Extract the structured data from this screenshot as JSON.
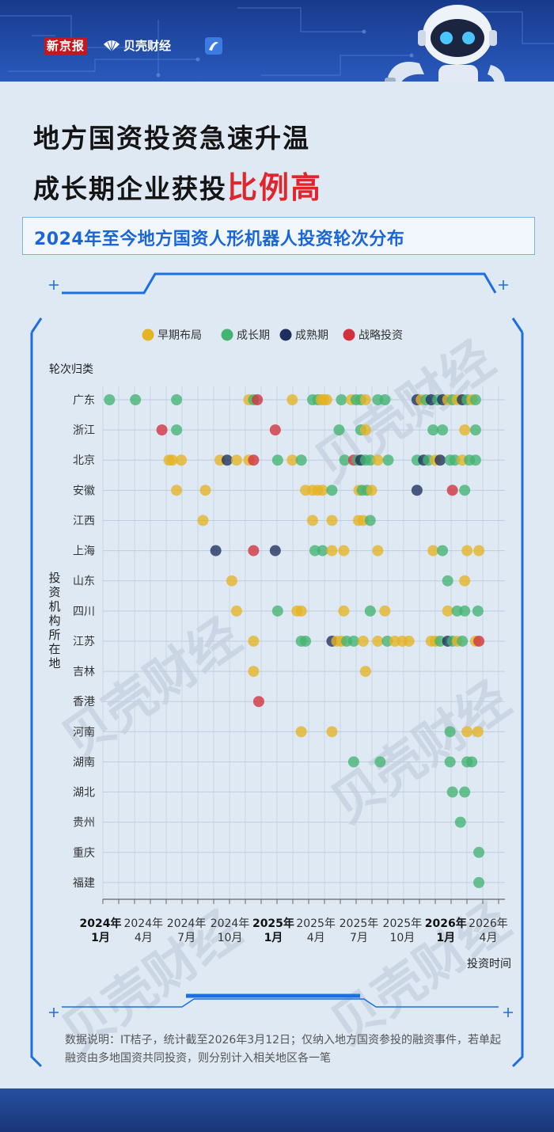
{
  "header": {
    "logo_xinjingbao": "新京报",
    "logo_beike": "贝壳财经"
  },
  "title": {
    "line1": "地方国资投资急速升温",
    "line2_plain": "成长期企业获投",
    "line2_highlight": "比例高"
  },
  "subtitle": "2024年至今地方国资人形机器人投资轮次分布",
  "watermark": "贝壳财经",
  "footnote": "数据说明：IT桔子，统计截至2026年3月12日；仅纳入地方国资参投的融资事件，若单起融资由多地国资共同投资，则分别计入相关地区各一笔",
  "colors": {
    "early": "#e6b422",
    "growth": "#43b371",
    "mature": "#1d2f5c",
    "strategic": "#d1313c",
    "title_red": "#e0262d",
    "subtitle_blue": "#1a66d9"
  },
  "chart_data": {
    "type": "scatter",
    "x_type": "date",
    "xlim": [
      "2023-12-01",
      "2026-04-25"
    ],
    "ylabel_top": "轮次归类",
    "ylabel_side": "投资机构所在地",
    "xlabel": "投资时间",
    "legend_position": "top",
    "legend": [
      {
        "key": "early",
        "label": "早期布局"
      },
      {
        "key": "growth",
        "label": "成长期"
      },
      {
        "key": "mature",
        "label": "成熟期"
      },
      {
        "key": "strategic",
        "label": "战略投资"
      }
    ],
    "categories": [
      "广东",
      "浙江",
      "北京",
      "安徽",
      "江西",
      "上海",
      "山东",
      "四川",
      "江苏",
      "吉林",
      "香港",
      "河南",
      "湖南",
      "湖北",
      "贵州",
      "重庆",
      "福建"
    ],
    "x_ticks": [
      {
        "date": "2024-01-01",
        "year": "2024年",
        "month": "1月",
        "bold": true
      },
      {
        "date": "2024-04-01",
        "year": "2024年",
        "month": "4月",
        "bold": false
      },
      {
        "date": "2024-07-01",
        "year": "2024年",
        "month": "7月",
        "bold": false
      },
      {
        "date": "2024-10-01",
        "year": "2024年",
        "month": "10月",
        "bold": false
      },
      {
        "date": "2025-01-01",
        "year": "2025年",
        "month": "1月",
        "bold": true
      },
      {
        "date": "2025-04-01",
        "year": "2025年",
        "month": "4月",
        "bold": false
      },
      {
        "date": "2025-07-01",
        "year": "2025年",
        "month": "7月",
        "bold": false
      },
      {
        "date": "2025-10-01",
        "year": "2025年",
        "month": "10月",
        "bold": false
      },
      {
        "date": "2026-01-01",
        "year": "2026年",
        "month": "1月",
        "bold": true
      },
      {
        "date": "2026-04-01",
        "year": "2026年",
        "month": "4月",
        "bold": false
      }
    ],
    "points": [
      {
        "region": "广东",
        "date": "2024-01-20",
        "type": "growth"
      },
      {
        "region": "广东",
        "date": "2024-03-15",
        "type": "growth"
      },
      {
        "region": "广东",
        "date": "2024-06-10",
        "type": "growth"
      },
      {
        "region": "广东",
        "date": "2024-11-10",
        "type": "early"
      },
      {
        "region": "广东",
        "date": "2024-11-20",
        "type": "growth"
      },
      {
        "region": "广东",
        "date": "2024-11-28",
        "type": "strategic"
      },
      {
        "region": "广东",
        "date": "2025-02-10",
        "type": "early"
      },
      {
        "region": "广东",
        "date": "2025-03-25",
        "type": "growth"
      },
      {
        "region": "广东",
        "date": "2025-04-05",
        "type": "growth"
      },
      {
        "region": "广东",
        "date": "2025-04-12",
        "type": "early"
      },
      {
        "region": "广东",
        "date": "2025-04-18",
        "type": "early"
      },
      {
        "region": "广东",
        "date": "2025-04-24",
        "type": "early"
      },
      {
        "region": "广东",
        "date": "2025-05-25",
        "type": "growth"
      },
      {
        "region": "广东",
        "date": "2025-06-15",
        "type": "early"
      },
      {
        "region": "广东",
        "date": "2025-06-25",
        "type": "growth"
      },
      {
        "region": "广东",
        "date": "2025-07-05",
        "type": "growth"
      },
      {
        "region": "广东",
        "date": "2025-07-15",
        "type": "early"
      },
      {
        "region": "广东",
        "date": "2025-08-10",
        "type": "growth"
      },
      {
        "region": "广东",
        "date": "2025-08-25",
        "type": "growth"
      },
      {
        "region": "广东",
        "date": "2025-11-01",
        "type": "mature"
      },
      {
        "region": "广东",
        "date": "2025-11-10",
        "type": "early"
      },
      {
        "region": "广东",
        "date": "2025-11-20",
        "type": "growth"
      },
      {
        "region": "广东",
        "date": "2025-12-01",
        "type": "mature"
      },
      {
        "region": "广东",
        "date": "2025-12-15",
        "type": "growth"
      },
      {
        "region": "广东",
        "date": "2025-12-25",
        "type": "mature"
      },
      {
        "region": "广东",
        "date": "2026-01-05",
        "type": "early"
      },
      {
        "region": "广东",
        "date": "2026-01-15",
        "type": "growth"
      },
      {
        "region": "广东",
        "date": "2026-01-25",
        "type": "early"
      },
      {
        "region": "广东",
        "date": "2026-02-05",
        "type": "mature"
      },
      {
        "region": "广东",
        "date": "2026-02-15",
        "type": "growth"
      },
      {
        "region": "广东",
        "date": "2026-02-25",
        "type": "early"
      },
      {
        "region": "广东",
        "date": "2026-03-05",
        "type": "growth"
      },
      {
        "region": "浙江",
        "date": "2024-05-10",
        "type": "strategic"
      },
      {
        "region": "浙江",
        "date": "2024-06-10",
        "type": "growth"
      },
      {
        "region": "浙江",
        "date": "2025-01-05",
        "type": "strategic"
      },
      {
        "region": "浙江",
        "date": "2025-05-20",
        "type": "growth"
      },
      {
        "region": "浙江",
        "date": "2025-07-05",
        "type": "growth"
      },
      {
        "region": "浙江",
        "date": "2025-07-15",
        "type": "early"
      },
      {
        "region": "浙江",
        "date": "2025-12-05",
        "type": "growth"
      },
      {
        "region": "浙江",
        "date": "2025-12-25",
        "type": "growth"
      },
      {
        "region": "浙江",
        "date": "2026-02-10",
        "type": "early"
      },
      {
        "region": "浙江",
        "date": "2026-03-05",
        "type": "growth"
      },
      {
        "region": "北京",
        "date": "2024-05-25",
        "type": "early"
      },
      {
        "region": "北京",
        "date": "2024-06-01",
        "type": "early"
      },
      {
        "region": "北京",
        "date": "2024-06-20",
        "type": "early"
      },
      {
        "region": "北京",
        "date": "2024-09-10",
        "type": "early"
      },
      {
        "region": "北京",
        "date": "2024-09-25",
        "type": "mature"
      },
      {
        "region": "北京",
        "date": "2024-10-15",
        "type": "early"
      },
      {
        "region": "北京",
        "date": "2024-11-10",
        "type": "early"
      },
      {
        "region": "北京",
        "date": "2024-11-20",
        "type": "strategic"
      },
      {
        "region": "北京",
        "date": "2025-01-10",
        "type": "growth"
      },
      {
        "region": "北京",
        "date": "2025-02-10",
        "type": "early"
      },
      {
        "region": "北京",
        "date": "2025-03-01",
        "type": "growth"
      },
      {
        "region": "北京",
        "date": "2025-06-01",
        "type": "growth"
      },
      {
        "region": "北京",
        "date": "2025-06-20",
        "type": "strategic"
      },
      {
        "region": "北京",
        "date": "2025-06-28",
        "type": "growth"
      },
      {
        "region": "北京",
        "date": "2025-07-05",
        "type": "mature"
      },
      {
        "region": "北京",
        "date": "2025-07-15",
        "type": "growth"
      },
      {
        "region": "北京",
        "date": "2025-07-25",
        "type": "growth"
      },
      {
        "region": "北京",
        "date": "2025-08-10",
        "type": "early"
      },
      {
        "region": "北京",
        "date": "2025-09-01",
        "type": "growth"
      },
      {
        "region": "北京",
        "date": "2025-11-01",
        "type": "growth"
      },
      {
        "region": "北京",
        "date": "2025-11-15",
        "type": "mature"
      },
      {
        "region": "北京",
        "date": "2025-11-25",
        "type": "growth"
      },
      {
        "region": "北京",
        "date": "2025-12-10",
        "type": "early"
      },
      {
        "region": "北京",
        "date": "2025-12-20",
        "type": "mature"
      },
      {
        "region": "北京",
        "date": "2026-01-10",
        "type": "growth"
      },
      {
        "region": "北京",
        "date": "2026-01-20",
        "type": "growth"
      },
      {
        "region": "北京",
        "date": "2026-02-05",
        "type": "early"
      },
      {
        "region": "北京",
        "date": "2026-02-20",
        "type": "growth"
      },
      {
        "region": "北京",
        "date": "2026-03-05",
        "type": "growth"
      },
      {
        "region": "安徽",
        "date": "2024-06-10",
        "type": "early"
      },
      {
        "region": "安徽",
        "date": "2024-08-10",
        "type": "early"
      },
      {
        "region": "安徽",
        "date": "2025-03-10",
        "type": "early"
      },
      {
        "region": "安徽",
        "date": "2025-03-25",
        "type": "early"
      },
      {
        "region": "安徽",
        "date": "2025-04-05",
        "type": "early"
      },
      {
        "region": "安徽",
        "date": "2025-04-15",
        "type": "early"
      },
      {
        "region": "安徽",
        "date": "2025-05-05",
        "type": "growth"
      },
      {
        "region": "安徽",
        "date": "2025-07-01",
        "type": "early"
      },
      {
        "region": "安徽",
        "date": "2025-07-08",
        "type": "growth"
      },
      {
        "region": "安徽",
        "date": "2025-07-18",
        "type": "growth"
      },
      {
        "region": "安徽",
        "date": "2025-07-28",
        "type": "early"
      },
      {
        "region": "安徽",
        "date": "2025-11-01",
        "type": "mature"
      },
      {
        "region": "安徽",
        "date": "2026-01-15",
        "type": "strategic"
      },
      {
        "region": "安徽",
        "date": "2026-02-10",
        "type": "growth"
      },
      {
        "region": "江西",
        "date": "2024-08-05",
        "type": "early"
      },
      {
        "region": "江西",
        "date": "2025-03-25",
        "type": "early"
      },
      {
        "region": "江西",
        "date": "2025-05-05",
        "type": "early"
      },
      {
        "region": "江西",
        "date": "2025-06-30",
        "type": "early"
      },
      {
        "region": "江西",
        "date": "2025-07-10",
        "type": "early"
      },
      {
        "region": "江西",
        "date": "2025-07-25",
        "type": "growth"
      },
      {
        "region": "上海",
        "date": "2024-09-01",
        "type": "mature"
      },
      {
        "region": "上海",
        "date": "2024-11-20",
        "type": "strategic"
      },
      {
        "region": "上海",
        "date": "2025-01-05",
        "type": "mature"
      },
      {
        "region": "上海",
        "date": "2025-03-30",
        "type": "growth"
      },
      {
        "region": "上海",
        "date": "2025-04-15",
        "type": "growth"
      },
      {
        "region": "上海",
        "date": "2025-05-05",
        "type": "early"
      },
      {
        "region": "上海",
        "date": "2025-05-30",
        "type": "early"
      },
      {
        "region": "上海",
        "date": "2025-08-10",
        "type": "early"
      },
      {
        "region": "上海",
        "date": "2025-12-05",
        "type": "early"
      },
      {
        "region": "上海",
        "date": "2025-12-25",
        "type": "growth"
      },
      {
        "region": "上海",
        "date": "2026-02-15",
        "type": "early"
      },
      {
        "region": "上海",
        "date": "2026-03-12",
        "type": "early"
      },
      {
        "region": "山东",
        "date": "2024-10-05",
        "type": "early"
      },
      {
        "region": "山东",
        "date": "2026-01-05",
        "type": "growth"
      },
      {
        "region": "山东",
        "date": "2026-02-10",
        "type": "early"
      },
      {
        "region": "四川",
        "date": "2024-10-15",
        "type": "early"
      },
      {
        "region": "四川",
        "date": "2025-01-10",
        "type": "growth"
      },
      {
        "region": "四川",
        "date": "2025-02-20",
        "type": "early"
      },
      {
        "region": "四川",
        "date": "2025-03-01",
        "type": "early"
      },
      {
        "region": "四川",
        "date": "2025-05-30",
        "type": "early"
      },
      {
        "region": "四川",
        "date": "2025-07-25",
        "type": "growth"
      },
      {
        "region": "四川",
        "date": "2025-08-25",
        "type": "early"
      },
      {
        "region": "四川",
        "date": "2026-01-05",
        "type": "early"
      },
      {
        "region": "四川",
        "date": "2026-01-25",
        "type": "growth"
      },
      {
        "region": "四川",
        "date": "2026-02-10",
        "type": "growth"
      },
      {
        "region": "四川",
        "date": "2026-03-10",
        "type": "growth"
      },
      {
        "region": "江苏",
        "date": "2024-11-20",
        "type": "early"
      },
      {
        "region": "江苏",
        "date": "2025-03-01",
        "type": "growth"
      },
      {
        "region": "江苏",
        "date": "2025-03-10",
        "type": "growth"
      },
      {
        "region": "江苏",
        "date": "2025-05-05",
        "type": "mature"
      },
      {
        "region": "江苏",
        "date": "2025-05-15",
        "type": "early"
      },
      {
        "region": "江苏",
        "date": "2025-05-25",
        "type": "early"
      },
      {
        "region": "江苏",
        "date": "2025-06-05",
        "type": "growth"
      },
      {
        "region": "江苏",
        "date": "2025-06-20",
        "type": "growth"
      },
      {
        "region": "江苏",
        "date": "2025-07-10",
        "type": "early"
      },
      {
        "region": "江苏",
        "date": "2025-08-10",
        "type": "early"
      },
      {
        "region": "江苏",
        "date": "2025-08-30",
        "type": "growth"
      },
      {
        "region": "江苏",
        "date": "2025-09-15",
        "type": "early"
      },
      {
        "region": "江苏",
        "date": "2025-10-01",
        "type": "early"
      },
      {
        "region": "江苏",
        "date": "2025-10-15",
        "type": "early"
      },
      {
        "region": "江苏",
        "date": "2025-12-01",
        "type": "early"
      },
      {
        "region": "江苏",
        "date": "2025-12-10",
        "type": "early"
      },
      {
        "region": "江苏",
        "date": "2025-12-20",
        "type": "growth"
      },
      {
        "region": "江苏",
        "date": "2026-01-05",
        "type": "mature"
      },
      {
        "region": "江苏",
        "date": "2026-01-15",
        "type": "growth"
      },
      {
        "region": "江苏",
        "date": "2026-01-25",
        "type": "early"
      },
      {
        "region": "江苏",
        "date": "2026-02-05",
        "type": "growth"
      },
      {
        "region": "江苏",
        "date": "2026-03-05",
        "type": "early"
      },
      {
        "region": "江苏",
        "date": "2026-03-12",
        "type": "strategic"
      },
      {
        "region": "吉林",
        "date": "2024-11-20",
        "type": "early"
      },
      {
        "region": "吉林",
        "date": "2025-07-15",
        "type": "early"
      },
      {
        "region": "香港",
        "date": "2024-12-01",
        "type": "strategic"
      },
      {
        "region": "河南",
        "date": "2025-03-01",
        "type": "early"
      },
      {
        "region": "河南",
        "date": "2025-05-05",
        "type": "early"
      },
      {
        "region": "河南",
        "date": "2026-01-10",
        "type": "growth"
      },
      {
        "region": "河南",
        "date": "2026-02-15",
        "type": "early"
      },
      {
        "region": "河南",
        "date": "2026-03-10",
        "type": "early"
      },
      {
        "region": "湖南",
        "date": "2025-06-20",
        "type": "growth"
      },
      {
        "region": "湖南",
        "date": "2025-08-15",
        "type": "growth"
      },
      {
        "region": "湖南",
        "date": "2026-01-10",
        "type": "growth"
      },
      {
        "region": "湖南",
        "date": "2026-02-15",
        "type": "growth"
      },
      {
        "region": "湖南",
        "date": "2026-02-25",
        "type": "growth"
      },
      {
        "region": "湖北",
        "date": "2026-01-15",
        "type": "growth"
      },
      {
        "region": "湖北",
        "date": "2026-02-10",
        "type": "growth"
      },
      {
        "region": "贵州",
        "date": "2026-02-01",
        "type": "growth"
      },
      {
        "region": "重庆",
        "date": "2026-03-12",
        "type": "growth"
      },
      {
        "region": "福建",
        "date": "2026-03-12",
        "type": "growth"
      }
    ]
  }
}
